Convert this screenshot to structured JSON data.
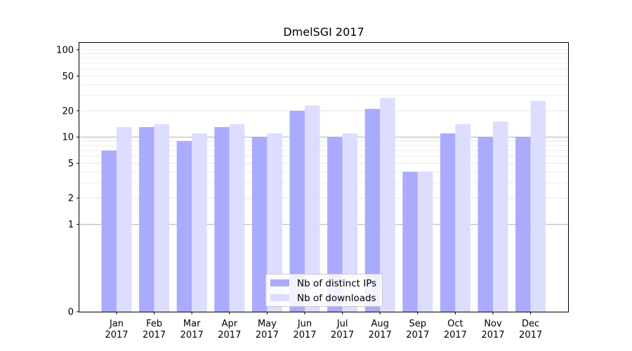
{
  "chart_data": {
    "type": "bar",
    "title": "DmelSGI 2017",
    "xlabel": "",
    "ylabel": "",
    "y_scale": "symlog",
    "ylim": [
      0,
      120
    ],
    "y_ticks": [
      0,
      1,
      2,
      5,
      10,
      20,
      50,
      100
    ],
    "y_tick_labels": [
      "0",
      "1",
      "2",
      "5",
      "10",
      "20",
      "50",
      "100"
    ],
    "categories": [
      "Jan\n2017",
      "Feb\n2017",
      "Mar\n2017",
      "Apr\n2017",
      "May\n2017",
      "Jun\n2017",
      "Jul\n2017",
      "Aug\n2017",
      "Sep\n2017",
      "Oct\n2017",
      "Nov\n2017",
      "Dec\n2017"
    ],
    "series": [
      {
        "name": "Nb of distinct IPs",
        "color": "#aaaaff",
        "values": [
          7,
          13,
          9,
          13,
          10,
          20,
          10,
          21,
          4,
          11,
          10,
          10
        ]
      },
      {
        "name": "Nb of downloads",
        "color": "#ddddff",
        "values": [
          13,
          14,
          11,
          14,
          11,
          23,
          11,
          28,
          4,
          14,
          15,
          26
        ]
      }
    ],
    "grid": true,
    "legend_position": "bottom-center"
  }
}
